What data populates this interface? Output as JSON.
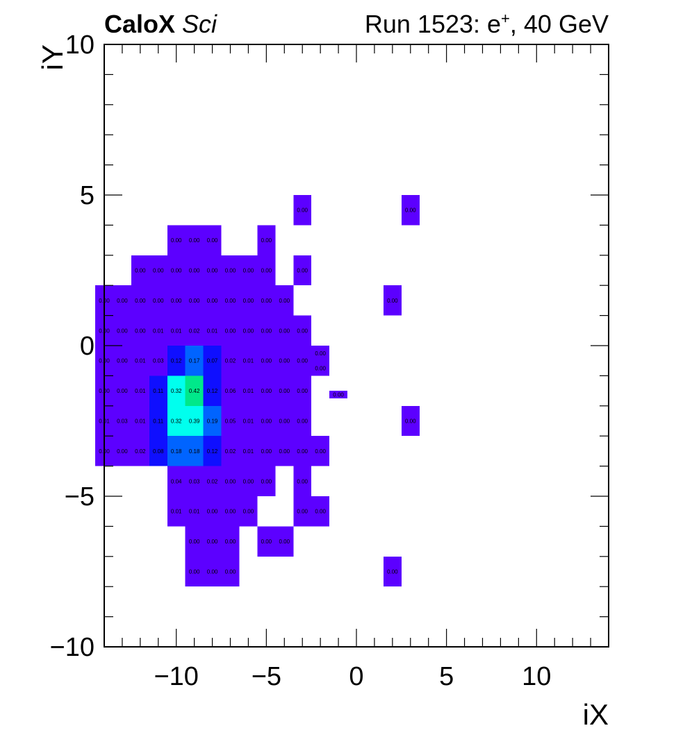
{
  "header": {
    "experiment": "CaloX",
    "detector": "Sci",
    "run_prefix": "Run 1523: e",
    "run_charge": "+",
    "run_suffix": ", 40 GeV"
  },
  "chart_data": {
    "type": "heatmap",
    "title": "",
    "xlabel": "iX",
    "ylabel": "iY",
    "xlim": [
      -14,
      14
    ],
    "ylim": [
      -10,
      10
    ],
    "x_ticks": [
      -10,
      -5,
      0,
      5,
      10
    ],
    "y_ticks": [
      -10,
      -5,
      0,
      5,
      10
    ],
    "x_tick_labels": [
      "−10",
      "−5",
      "0",
      "5",
      "10"
    ],
    "y_tick_labels": [
      "−10",
      "−5",
      "0",
      "5",
      "10"
    ],
    "colors": {
      "low": "#5c00ff",
      "blue": "#0f0fff",
      "mid_blue": "#0064ff",
      "cyan": "#00ffee",
      "green": "#00e88a"
    },
    "cells": [
      {
        "x": -3,
        "y": 4.5,
        "w": 1,
        "h": 1,
        "value": "0.00"
      },
      {
        "x": 3,
        "y": 4.5,
        "w": 1,
        "h": 1,
        "value": "0.00"
      },
      {
        "x": -10,
        "y": 3.5,
        "w": 1,
        "h": 1,
        "value": "0.00"
      },
      {
        "x": -9,
        "y": 3.5,
        "w": 1,
        "h": 1,
        "value": "0.00"
      },
      {
        "x": -8,
        "y": 3.5,
        "w": 1,
        "h": 1,
        "value": "0.00"
      },
      {
        "x": -5,
        "y": 3.5,
        "w": 1,
        "h": 1,
        "value": "0.00"
      },
      {
        "x": -12,
        "y": 2.5,
        "w": 1,
        "h": 1,
        "value": "0.00"
      },
      {
        "x": -11,
        "y": 2.5,
        "w": 1,
        "h": 1,
        "value": "0.00"
      },
      {
        "x": -10,
        "y": 2.5,
        "w": 1,
        "h": 1,
        "value": "0.00"
      },
      {
        "x": -9,
        "y": 2.5,
        "w": 1,
        "h": 1,
        "value": "0.00"
      },
      {
        "x": -8,
        "y": 2.5,
        "w": 1,
        "h": 1,
        "value": "0.00"
      },
      {
        "x": -7,
        "y": 2.5,
        "w": 1,
        "h": 1,
        "value": "0.00"
      },
      {
        "x": -6,
        "y": 2.5,
        "w": 1,
        "h": 1,
        "value": "0.00"
      },
      {
        "x": -5,
        "y": 2.5,
        "w": 1,
        "h": 1,
        "value": "0.00"
      },
      {
        "x": -3,
        "y": 2.5,
        "w": 1,
        "h": 1,
        "value": "0.00"
      },
      {
        "x": -14,
        "y": 1.5,
        "w": 1,
        "h": 1,
        "value": "0.00"
      },
      {
        "x": -13,
        "y": 1.5,
        "w": 1,
        "h": 1,
        "value": "0.00"
      },
      {
        "x": -12,
        "y": 1.5,
        "w": 1,
        "h": 1,
        "value": "0.00"
      },
      {
        "x": -11,
        "y": 1.5,
        "w": 1,
        "h": 1,
        "value": "0.00"
      },
      {
        "x": -10,
        "y": 1.5,
        "w": 1,
        "h": 1,
        "value": "0.00"
      },
      {
        "x": -9,
        "y": 1.5,
        "w": 1,
        "h": 1,
        "value": "0.00"
      },
      {
        "x": -8,
        "y": 1.5,
        "w": 1,
        "h": 1,
        "value": "0.00"
      },
      {
        "x": -7,
        "y": 1.5,
        "w": 1,
        "h": 1,
        "value": "0.00"
      },
      {
        "x": -6,
        "y": 1.5,
        "w": 1,
        "h": 1,
        "value": "0.00"
      },
      {
        "x": -5,
        "y": 1.5,
        "w": 1,
        "h": 1,
        "value": "0.00"
      },
      {
        "x": -4,
        "y": 1.5,
        "w": 1,
        "h": 1,
        "value": "0.00"
      },
      {
        "x": 2,
        "y": 1.5,
        "w": 1,
        "h": 1,
        "value": "0.00"
      },
      {
        "x": -14,
        "y": 0.5,
        "w": 1,
        "h": 1,
        "value": "0.00"
      },
      {
        "x": -13,
        "y": 0.5,
        "w": 1,
        "h": 1,
        "value": "0.00"
      },
      {
        "x": -12,
        "y": 0.5,
        "w": 1,
        "h": 1,
        "value": "0.00"
      },
      {
        "x": -11,
        "y": 0.5,
        "w": 1,
        "h": 1,
        "value": "0.01"
      },
      {
        "x": -10,
        "y": 0.5,
        "w": 1,
        "h": 1,
        "value": "0.01"
      },
      {
        "x": -9,
        "y": 0.5,
        "w": 1,
        "h": 1,
        "value": "0.02"
      },
      {
        "x": -8,
        "y": 0.5,
        "w": 1,
        "h": 1,
        "value": "0.01"
      },
      {
        "x": -7,
        "y": 0.5,
        "w": 1,
        "h": 1,
        "value": "0.00"
      },
      {
        "x": -6,
        "y": 0.5,
        "w": 1,
        "h": 1,
        "value": "0.00"
      },
      {
        "x": -5,
        "y": 0.5,
        "w": 1,
        "h": 1,
        "value": "0.00"
      },
      {
        "x": -4,
        "y": 0.5,
        "w": 1,
        "h": 1,
        "value": "0.00"
      },
      {
        "x": -3,
        "y": 0.5,
        "w": 1,
        "h": 1,
        "value": "0.00"
      },
      {
        "x": -14,
        "y": -0.5,
        "w": 1,
        "h": 1,
        "value": "0.00"
      },
      {
        "x": -13,
        "y": -0.5,
        "w": 1,
        "h": 1,
        "value": "0.00"
      },
      {
        "x": -12,
        "y": -0.5,
        "w": 1,
        "h": 1,
        "value": "0.01"
      },
      {
        "x": -11,
        "y": -0.5,
        "w": 1,
        "h": 1,
        "value": "0.03"
      },
      {
        "x": -10,
        "y": -0.5,
        "w": 1,
        "h": 1,
        "value": "0.12",
        "color": "blue"
      },
      {
        "x": -9,
        "y": -0.5,
        "w": 1,
        "h": 1,
        "value": "0.17",
        "color": "mid_blue"
      },
      {
        "x": -8,
        "y": -0.5,
        "w": 1,
        "h": 1,
        "value": "0.07",
        "color": "blue"
      },
      {
        "x": -7,
        "y": -0.5,
        "w": 1,
        "h": 1,
        "value": "0.02"
      },
      {
        "x": -6,
        "y": -0.5,
        "w": 1,
        "h": 1,
        "value": "0.01"
      },
      {
        "x": -5,
        "y": -0.5,
        "w": 1,
        "h": 1,
        "value": "0.00"
      },
      {
        "x": -4,
        "y": -0.5,
        "w": 1,
        "h": 1,
        "value": "0.00"
      },
      {
        "x": -3,
        "y": -0.5,
        "w": 1,
        "h": 1,
        "value": "0.00"
      },
      {
        "x": -2,
        "y": -0.25,
        "w": 1,
        "h": 0.5,
        "value": "0.00"
      },
      {
        "x": -2,
        "y": -0.75,
        "w": 1,
        "h": 0.5,
        "value": "0.00"
      },
      {
        "x": -14,
        "y": -1.5,
        "w": 1,
        "h": 1,
        "value": "0.00"
      },
      {
        "x": -13,
        "y": -1.5,
        "w": 1,
        "h": 1,
        "value": "0.00"
      },
      {
        "x": -12,
        "y": -1.5,
        "w": 1,
        "h": 1,
        "value": "0.01"
      },
      {
        "x": -11,
        "y": -1.5,
        "w": 1,
        "h": 1,
        "value": "0.11",
        "color": "blue"
      },
      {
        "x": -10,
        "y": -1.5,
        "w": 1,
        "h": 1,
        "value": "0.32",
        "color": "cyan"
      },
      {
        "x": -9,
        "y": -1.5,
        "w": 1,
        "h": 1,
        "value": "0.42",
        "color": "green"
      },
      {
        "x": -8,
        "y": -1.5,
        "w": 1,
        "h": 1,
        "value": "0.12",
        "color": "blue"
      },
      {
        "x": -7,
        "y": -1.5,
        "w": 1,
        "h": 1,
        "value": "0.06"
      },
      {
        "x": -6,
        "y": -1.5,
        "w": 1,
        "h": 1,
        "value": "0.01"
      },
      {
        "x": -5,
        "y": -1.5,
        "w": 1,
        "h": 1,
        "value": "0.00"
      },
      {
        "x": -4,
        "y": -1.5,
        "w": 1,
        "h": 1,
        "value": "0.00"
      },
      {
        "x": -3,
        "y": -1.5,
        "w": 1,
        "h": 1,
        "value": "0.00"
      },
      {
        "x": -1,
        "y": -1.625,
        "w": 1,
        "h": 0.25,
        "value": "0.00"
      },
      {
        "x": -14,
        "y": -2.5,
        "w": 1,
        "h": 1,
        "value": "0.01"
      },
      {
        "x": -13,
        "y": -2.5,
        "w": 1,
        "h": 1,
        "value": "0.03"
      },
      {
        "x": -12,
        "y": -2.5,
        "w": 1,
        "h": 1,
        "value": "0.01"
      },
      {
        "x": -11,
        "y": -2.5,
        "w": 1,
        "h": 1,
        "value": "0.11",
        "color": "blue"
      },
      {
        "x": -10,
        "y": -2.5,
        "w": 1,
        "h": 1,
        "value": "0.32",
        "color": "cyan"
      },
      {
        "x": -9,
        "y": -2.5,
        "w": 1,
        "h": 1,
        "value": "0.39",
        "color": "cyan"
      },
      {
        "x": -8,
        "y": -2.5,
        "w": 1,
        "h": 1,
        "value": "0.19",
        "color": "mid_blue"
      },
      {
        "x": -7,
        "y": -2.5,
        "w": 1,
        "h": 1,
        "value": "0.05"
      },
      {
        "x": -6,
        "y": -2.5,
        "w": 1,
        "h": 1,
        "value": "0.01"
      },
      {
        "x": -5,
        "y": -2.5,
        "w": 1,
        "h": 1,
        "value": "0.00"
      },
      {
        "x": -4,
        "y": -2.5,
        "w": 1,
        "h": 1,
        "value": "0.00"
      },
      {
        "x": -3,
        "y": -2.5,
        "w": 1,
        "h": 1,
        "value": "0.00"
      },
      {
        "x": 3,
        "y": -2.5,
        "w": 1,
        "h": 1,
        "value": "0.00"
      },
      {
        "x": -14,
        "y": -3.5,
        "w": 1,
        "h": 1,
        "value": "0.00"
      },
      {
        "x": -13,
        "y": -3.5,
        "w": 1,
        "h": 1,
        "value": "0.00"
      },
      {
        "x": -12,
        "y": -3.5,
        "w": 1,
        "h": 1,
        "value": "0.02"
      },
      {
        "x": -11,
        "y": -3.5,
        "w": 1,
        "h": 1,
        "value": "0.08",
        "color": "blue"
      },
      {
        "x": -10,
        "y": -3.5,
        "w": 1,
        "h": 1,
        "value": "0.18",
        "color": "mid_blue"
      },
      {
        "x": -9,
        "y": -3.5,
        "w": 1,
        "h": 1,
        "value": "0.18",
        "color": "mid_blue"
      },
      {
        "x": -8,
        "y": -3.5,
        "w": 1,
        "h": 1,
        "value": "0.12",
        "color": "blue"
      },
      {
        "x": -7,
        "y": -3.5,
        "w": 1,
        "h": 1,
        "value": "0.02"
      },
      {
        "x": -6,
        "y": -3.5,
        "w": 1,
        "h": 1,
        "value": "0.01"
      },
      {
        "x": -5,
        "y": -3.5,
        "w": 1,
        "h": 1,
        "value": "0.00"
      },
      {
        "x": -4,
        "y": -3.5,
        "w": 1,
        "h": 1,
        "value": "0.00"
      },
      {
        "x": -3,
        "y": -3.5,
        "w": 1,
        "h": 1,
        "value": "0.00"
      },
      {
        "x": -2,
        "y": -3.5,
        "w": 1,
        "h": 1,
        "value": "0.00"
      },
      {
        "x": -10,
        "y": -4.5,
        "w": 1,
        "h": 1,
        "value": "0.04"
      },
      {
        "x": -9,
        "y": -4.5,
        "w": 1,
        "h": 1,
        "value": "0.03"
      },
      {
        "x": -8,
        "y": -4.5,
        "w": 1,
        "h": 1,
        "value": "0.02"
      },
      {
        "x": -7,
        "y": -4.5,
        "w": 1,
        "h": 1,
        "value": "0.00"
      },
      {
        "x": -6,
        "y": -4.5,
        "w": 1,
        "h": 1,
        "value": "0.00"
      },
      {
        "x": -5,
        "y": -4.5,
        "w": 1,
        "h": 1,
        "value": "0.00"
      },
      {
        "x": -3,
        "y": -4.5,
        "w": 1,
        "h": 1,
        "value": "0.00"
      },
      {
        "x": -10,
        "y": -5.5,
        "w": 1,
        "h": 1,
        "value": "0.01"
      },
      {
        "x": -9,
        "y": -5.5,
        "w": 1,
        "h": 1,
        "value": "0.01"
      },
      {
        "x": -8,
        "y": -5.5,
        "w": 1,
        "h": 1,
        "value": "0.00"
      },
      {
        "x": -7,
        "y": -5.5,
        "w": 1,
        "h": 1,
        "value": "0.00"
      },
      {
        "x": -6,
        "y": -5.5,
        "w": 1,
        "h": 1,
        "value": "0.00"
      },
      {
        "x": -3,
        "y": -5.5,
        "w": 1,
        "h": 1,
        "value": "0.00"
      },
      {
        "x": -2,
        "y": -5.5,
        "w": 1,
        "h": 1,
        "value": "0.00"
      },
      {
        "x": -9,
        "y": -6.5,
        "w": 1,
        "h": 1,
        "value": "0.00"
      },
      {
        "x": -8,
        "y": -6.5,
        "w": 1,
        "h": 1,
        "value": "0.00"
      },
      {
        "x": -7,
        "y": -6.5,
        "w": 1,
        "h": 1,
        "value": "0.00"
      },
      {
        "x": -5,
        "y": -6.5,
        "w": 1,
        "h": 1,
        "value": "0.00"
      },
      {
        "x": -4,
        "y": -6.5,
        "w": 1,
        "h": 1,
        "value": "0.00"
      },
      {
        "x": -9,
        "y": -7.5,
        "w": 1,
        "h": 1,
        "value": "0.00"
      },
      {
        "x": -8,
        "y": -7.5,
        "w": 1,
        "h": 1,
        "value": "0.00"
      },
      {
        "x": -7,
        "y": -7.5,
        "w": 1,
        "h": 1,
        "value": "0.00"
      },
      {
        "x": 2,
        "y": -7.5,
        "w": 1,
        "h": 1,
        "value": "0.00"
      }
    ]
  }
}
